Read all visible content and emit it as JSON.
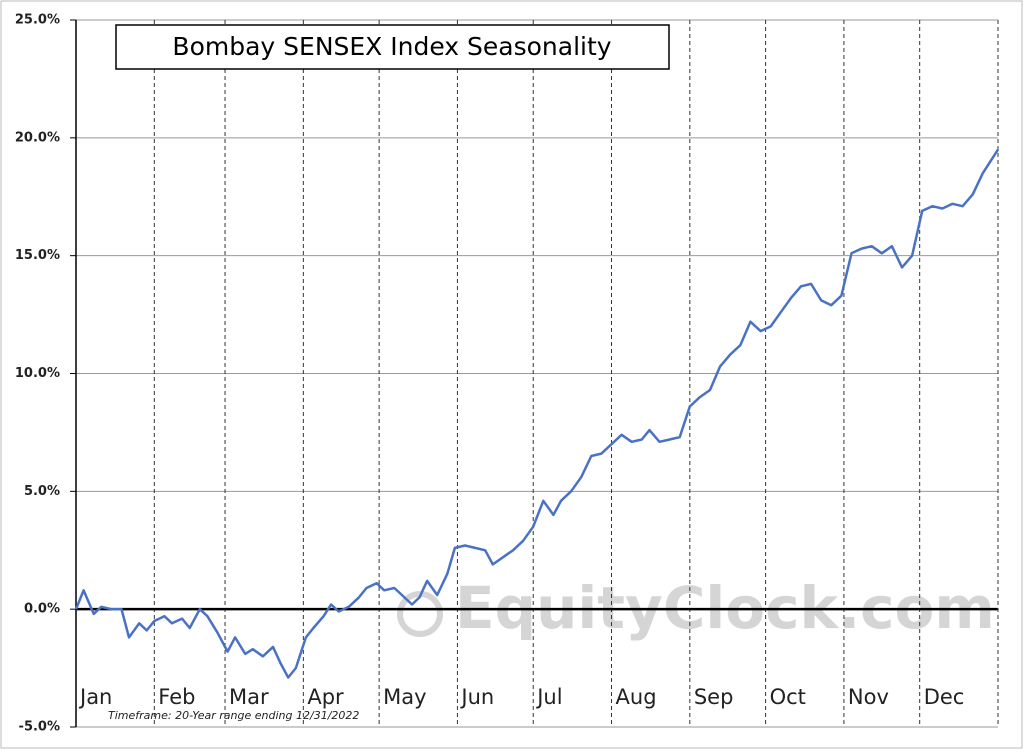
{
  "chart_data": {
    "type": "line",
    "title": "Bombay SENSEX Index Seasonality",
    "note": "Timeframe: 20-Year range ending 12/31/2022",
    "watermark": "EquityClock.com",
    "x": [
      0,
      3,
      7,
      10,
      14,
      18,
      21,
      25,
      28,
      31,
      35,
      38,
      42,
      45,
      49,
      52,
      56,
      60,
      63,
      67,
      70,
      74,
      78,
      81,
      84,
      87,
      91,
      94,
      98,
      101,
      104,
      108,
      112,
      115,
      119,
      122,
      126,
      129,
      133,
      136,
      139,
      143,
      147,
      150,
      154,
      158,
      162,
      165,
      169,
      173,
      177,
      181,
      185,
      189,
      192,
      196,
      200,
      204,
      208,
      212,
      216,
      220,
      224,
      227,
      231,
      235,
      239,
      243,
      247,
      251,
      255,
      259,
      263,
      267,
      271,
      275,
      279,
      283,
      287,
      291,
      295,
      299,
      303,
      307,
      311,
      315,
      319,
      323,
      327,
      331,
      335,
      339,
      343,
      347,
      351,
      355,
      359,
      365
    ],
    "series": [
      {
        "name": "Bombay SENSEX",
        "color": "#4a72c4",
        "values": [
          0,
          0.8,
          -0.2,
          0.1,
          0.0,
          0.0,
          -1.2,
          -0.6,
          -0.9,
          -0.5,
          -0.3,
          -0.6,
          -0.4,
          -0.8,
          0.0,
          -0.3,
          -1.0,
          -1.8,
          -1.2,
          -1.9,
          -1.7,
          -2.0,
          -1.6,
          -2.3,
          -2.9,
          -2.5,
          -1.2,
          -0.8,
          -0.3,
          0.2,
          -0.1,
          0.1,
          0.5,
          0.9,
          1.1,
          0.8,
          0.9,
          0.6,
          0.2,
          0.5,
          1.2,
          0.6,
          1.5,
          2.6,
          2.7,
          2.6,
          2.5,
          1.9,
          2.2,
          2.5,
          2.9,
          3.5,
          4.6,
          4.0,
          4.6,
          5.0,
          5.6,
          6.5,
          6.6,
          7.0,
          7.4,
          7.1,
          7.2,
          7.6,
          7.1,
          7.2,
          7.3,
          8.6,
          9.0,
          9.3,
          10.3,
          10.8,
          11.2,
          12.2,
          11.8,
          12.0,
          12.6,
          13.2,
          13.7,
          13.8,
          13.1,
          12.9,
          13.3,
          15.1,
          15.3,
          15.4,
          15.1,
          15.4,
          14.5,
          15.0,
          16.9,
          17.1,
          17.0,
          17.2,
          17.1,
          17.6,
          18.5,
          19.5
        ]
      }
    ],
    "xlim": [
      0,
      365
    ],
    "xticks": [
      {
        "value": 0,
        "label": "Jan"
      },
      {
        "value": 31,
        "label": "Feb"
      },
      {
        "value": 59,
        "label": "Mar"
      },
      {
        "value": 90,
        "label": "Apr"
      },
      {
        "value": 120,
        "label": "May"
      },
      {
        "value": 151,
        "label": "Jun"
      },
      {
        "value": 181,
        "label": "Jul"
      },
      {
        "value": 212,
        "label": "Aug"
      },
      {
        "value": 243,
        "label": "Sep"
      },
      {
        "value": 273,
        "label": "Oct"
      },
      {
        "value": 304,
        "label": "Nov"
      },
      {
        "value": 334,
        "label": "Dec"
      }
    ],
    "ylim": [
      -5,
      25
    ],
    "yticks": [
      {
        "value": -5,
        "label": "-5.0%"
      },
      {
        "value": 0,
        "label": "0.0%"
      },
      {
        "value": 5,
        "label": "5.0%"
      },
      {
        "value": 10,
        "label": "10.0%"
      },
      {
        "value": 15,
        "label": "15.0%"
      },
      {
        "value": 20,
        "label": "20.0%"
      },
      {
        "value": 25,
        "label": "25.0%"
      }
    ],
    "grid": true
  }
}
